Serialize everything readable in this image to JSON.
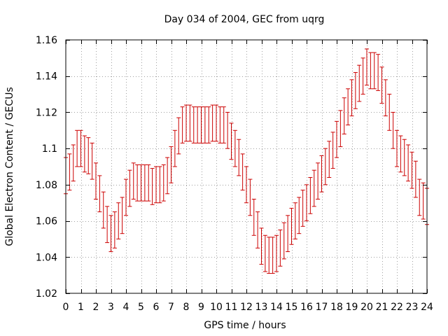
{
  "chart_data": {
    "type": "line",
    "title": "Day 034 of 2004, GEC from uqrg",
    "xlabel": "GPS time / hours",
    "ylabel": "Global Electron Content / GECUs",
    "xlim": [
      0,
      24
    ],
    "ylim": [
      1.02,
      1.16
    ],
    "x_ticks": [
      0,
      1,
      2,
      3,
      4,
      5,
      6,
      7,
      8,
      9,
      10,
      11,
      12,
      13,
      14,
      15,
      16,
      17,
      18,
      19,
      20,
      21,
      22,
      23,
      24
    ],
    "x_tick_labels": [
      "0",
      "1",
      "2",
      "3",
      "4",
      "5",
      "6",
      "7",
      "8",
      "9",
      "10",
      "11",
      "12",
      "13",
      "14",
      "15",
      "16",
      "17",
      "18",
      "19",
      "20",
      "21",
      "22",
      "23",
      "24"
    ],
    "y_ticks": [
      1.02,
      1.04,
      1.06,
      1.08,
      1.1,
      1.12,
      1.14,
      1.16
    ],
    "y_tick_labels": [
      "1.02",
      "1.04",
      "1.06",
      "1.08",
      "1.1",
      "1.12",
      "1.14",
      "1.16"
    ],
    "grid": true,
    "error_bar_halfwidth": 0.01,
    "series": [
      {
        "color": "#cc0000",
        "marker": "errorbar",
        "x": [
          0,
          0.25,
          0.5,
          0.75,
          1,
          1.25,
          1.5,
          1.75,
          2,
          2.25,
          2.5,
          2.75,
          3,
          3.25,
          3.5,
          3.75,
          4,
          4.25,
          4.5,
          4.75,
          5,
          5.25,
          5.5,
          5.75,
          6,
          6.25,
          6.5,
          6.75,
          7,
          7.25,
          7.5,
          7.75,
          8,
          8.25,
          8.5,
          8.75,
          9,
          9.25,
          9.5,
          9.75,
          10,
          10.25,
          10.5,
          10.75,
          11,
          11.25,
          11.5,
          11.75,
          12,
          12.25,
          12.5,
          12.75,
          13,
          13.25,
          13.5,
          13.75,
          14,
          14.25,
          14.5,
          14.75,
          15,
          15.25,
          15.5,
          15.75,
          16,
          16.25,
          16.5,
          16.75,
          17,
          17.25,
          17.5,
          17.75,
          18,
          18.25,
          18.5,
          18.75,
          19,
          19.25,
          19.5,
          19.75,
          20,
          20.25,
          20.5,
          20.75,
          21,
          21.25,
          21.5,
          21.75,
          22,
          22.25,
          22.5,
          22.75,
          23,
          23.25,
          23.5,
          23.75,
          24
        ],
        "y": [
          1.085,
          1.087,
          1.092,
          1.1,
          1.1,
          1.097,
          1.096,
          1.093,
          1.082,
          1.075,
          1.066,
          1.058,
          1.053,
          1.055,
          1.06,
          1.063,
          1.073,
          1.078,
          1.082,
          1.081,
          1.081,
          1.081,
          1.081,
          1.079,
          1.08,
          1.08,
          1.081,
          1.085,
          1.091,
          1.1,
          1.107,
          1.113,
          1.114,
          1.114,
          1.113,
          1.113,
          1.113,
          1.113,
          1.113,
          1.114,
          1.114,
          1.113,
          1.113,
          1.11,
          1.104,
          1.1,
          1.095,
          1.087,
          1.08,
          1.073,
          1.062,
          1.055,
          1.046,
          1.042,
          1.041,
          1.041,
          1.042,
          1.045,
          1.049,
          1.053,
          1.057,
          1.06,
          1.063,
          1.067,
          1.07,
          1.074,
          1.078,
          1.082,
          1.086,
          1.09,
          1.094,
          1.099,
          1.105,
          1.111,
          1.118,
          1.123,
          1.128,
          1.132,
          1.136,
          1.14,
          1.145,
          1.143,
          1.143,
          1.142,
          1.135,
          1.128,
          1.12,
          1.11,
          1.1,
          1.097,
          1.095,
          1.092,
          1.088,
          1.083,
          1.073,
          1.071,
          1.068
        ]
      }
    ]
  }
}
